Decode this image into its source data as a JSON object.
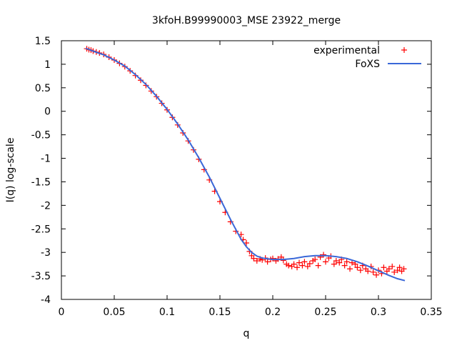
{
  "chart_data": {
    "type": "scatter",
    "title": "3kfoH.B99990003_MSE 23922_merge",
    "xlabel": "q",
    "ylabel": "I(q) log-scale",
    "xlim": [
      0,
      0.35
    ],
    "ylim": [
      -4,
      1.5
    ],
    "x_ticks": [
      "0",
      "0.05",
      "0.1",
      "0.15",
      "0.2",
      "0.25",
      "0.3",
      "0.35"
    ],
    "y_ticks": [
      "1.5",
      "1",
      "0.5",
      "0",
      "-0.5",
      "-1",
      "-1.5",
      "-2",
      "-2.5",
      "-3",
      "-3.5",
      "-4"
    ],
    "grid": false,
    "legend_position": "top-right",
    "series": [
      {
        "name": "experimental",
        "kind": "points",
        "marker": "plus",
        "color": "#ff0000",
        "x": [
          0.024,
          0.026,
          0.028,
          0.03,
          0.033,
          0.036,
          0.04,
          0.045,
          0.05,
          0.055,
          0.06,
          0.065,
          0.07,
          0.075,
          0.08,
          0.085,
          0.09,
          0.095,
          0.1,
          0.105,
          0.11,
          0.115,
          0.12,
          0.125,
          0.13,
          0.135,
          0.14,
          0.145,
          0.15,
          0.155,
          0.16,
          0.165,
          0.17,
          0.172,
          0.175,
          0.178,
          0.18,
          0.182,
          0.185,
          0.188,
          0.19,
          0.193,
          0.195,
          0.198,
          0.2,
          0.203,
          0.205,
          0.208,
          0.21,
          0.213,
          0.215,
          0.218,
          0.22,
          0.223,
          0.225,
          0.228,
          0.23,
          0.233,
          0.235,
          0.238,
          0.24,
          0.243,
          0.245,
          0.248,
          0.25,
          0.253,
          0.255,
          0.258,
          0.26,
          0.263,
          0.265,
          0.268,
          0.27,
          0.273,
          0.275,
          0.278,
          0.28,
          0.283,
          0.285,
          0.288,
          0.29,
          0.293,
          0.295,
          0.298,
          0.3,
          0.303,
          0.305,
          0.308,
          0.31,
          0.313,
          0.315,
          0.318,
          0.32,
          0.322,
          0.324
        ],
        "y": [
          1.33,
          1.31,
          1.3,
          1.28,
          1.26,
          1.24,
          1.21,
          1.15,
          1.09,
          1.02,
          0.95,
          0.86,
          0.76,
          0.66,
          0.55,
          0.43,
          0.31,
          0.17,
          0.03,
          -0.13,
          -0.29,
          -0.46,
          -0.63,
          -0.82,
          -1.02,
          -1.24,
          -1.46,
          -1.7,
          -1.92,
          -2.15,
          -2.35,
          -2.55,
          -2.62,
          -2.73,
          -2.8,
          -2.98,
          -3.07,
          -3.13,
          -3.18,
          -3.14,
          -3.16,
          -3.12,
          -3.2,
          -3.15,
          -3.13,
          -3.18,
          -3.14,
          -3.1,
          -3.17,
          -3.25,
          -3.28,
          -3.3,
          -3.25,
          -3.32,
          -3.22,
          -3.28,
          -3.2,
          -3.3,
          -3.24,
          -3.18,
          -3.15,
          -3.28,
          -3.1,
          -3.05,
          -3.2,
          -3.12,
          -3.08,
          -3.25,
          -3.18,
          -3.22,
          -3.15,
          -3.28,
          -3.2,
          -3.35,
          -3.22,
          -3.25,
          -3.32,
          -3.38,
          -3.28,
          -3.35,
          -3.4,
          -3.3,
          -3.42,
          -3.48,
          -3.38,
          -3.45,
          -3.32,
          -3.4,
          -3.35,
          -3.3,
          -3.42,
          -3.38,
          -3.32,
          -3.4,
          -3.35
        ]
      },
      {
        "name": "FoXS",
        "kind": "line",
        "color": "#3a68d8",
        "x": [
          0.023,
          0.03,
          0.04,
          0.05,
          0.06,
          0.07,
          0.08,
          0.09,
          0.1,
          0.11,
          0.12,
          0.13,
          0.14,
          0.15,
          0.16,
          0.17,
          0.175,
          0.18,
          0.185,
          0.19,
          0.2,
          0.21,
          0.22,
          0.23,
          0.24,
          0.25,
          0.26,
          0.27,
          0.28,
          0.29,
          0.3,
          0.31,
          0.318,
          0.325
        ],
        "y": [
          1.34,
          1.28,
          1.2,
          1.09,
          0.96,
          0.78,
          0.57,
          0.32,
          0.04,
          -0.27,
          -0.61,
          -0.99,
          -1.4,
          -1.85,
          -2.3,
          -2.72,
          -2.88,
          -3.0,
          -3.08,
          -3.12,
          -3.15,
          -3.15,
          -3.13,
          -3.09,
          -3.07,
          -3.07,
          -3.09,
          -3.13,
          -3.2,
          -3.29,
          -3.39,
          -3.49,
          -3.56,
          -3.6
        ]
      }
    ]
  }
}
